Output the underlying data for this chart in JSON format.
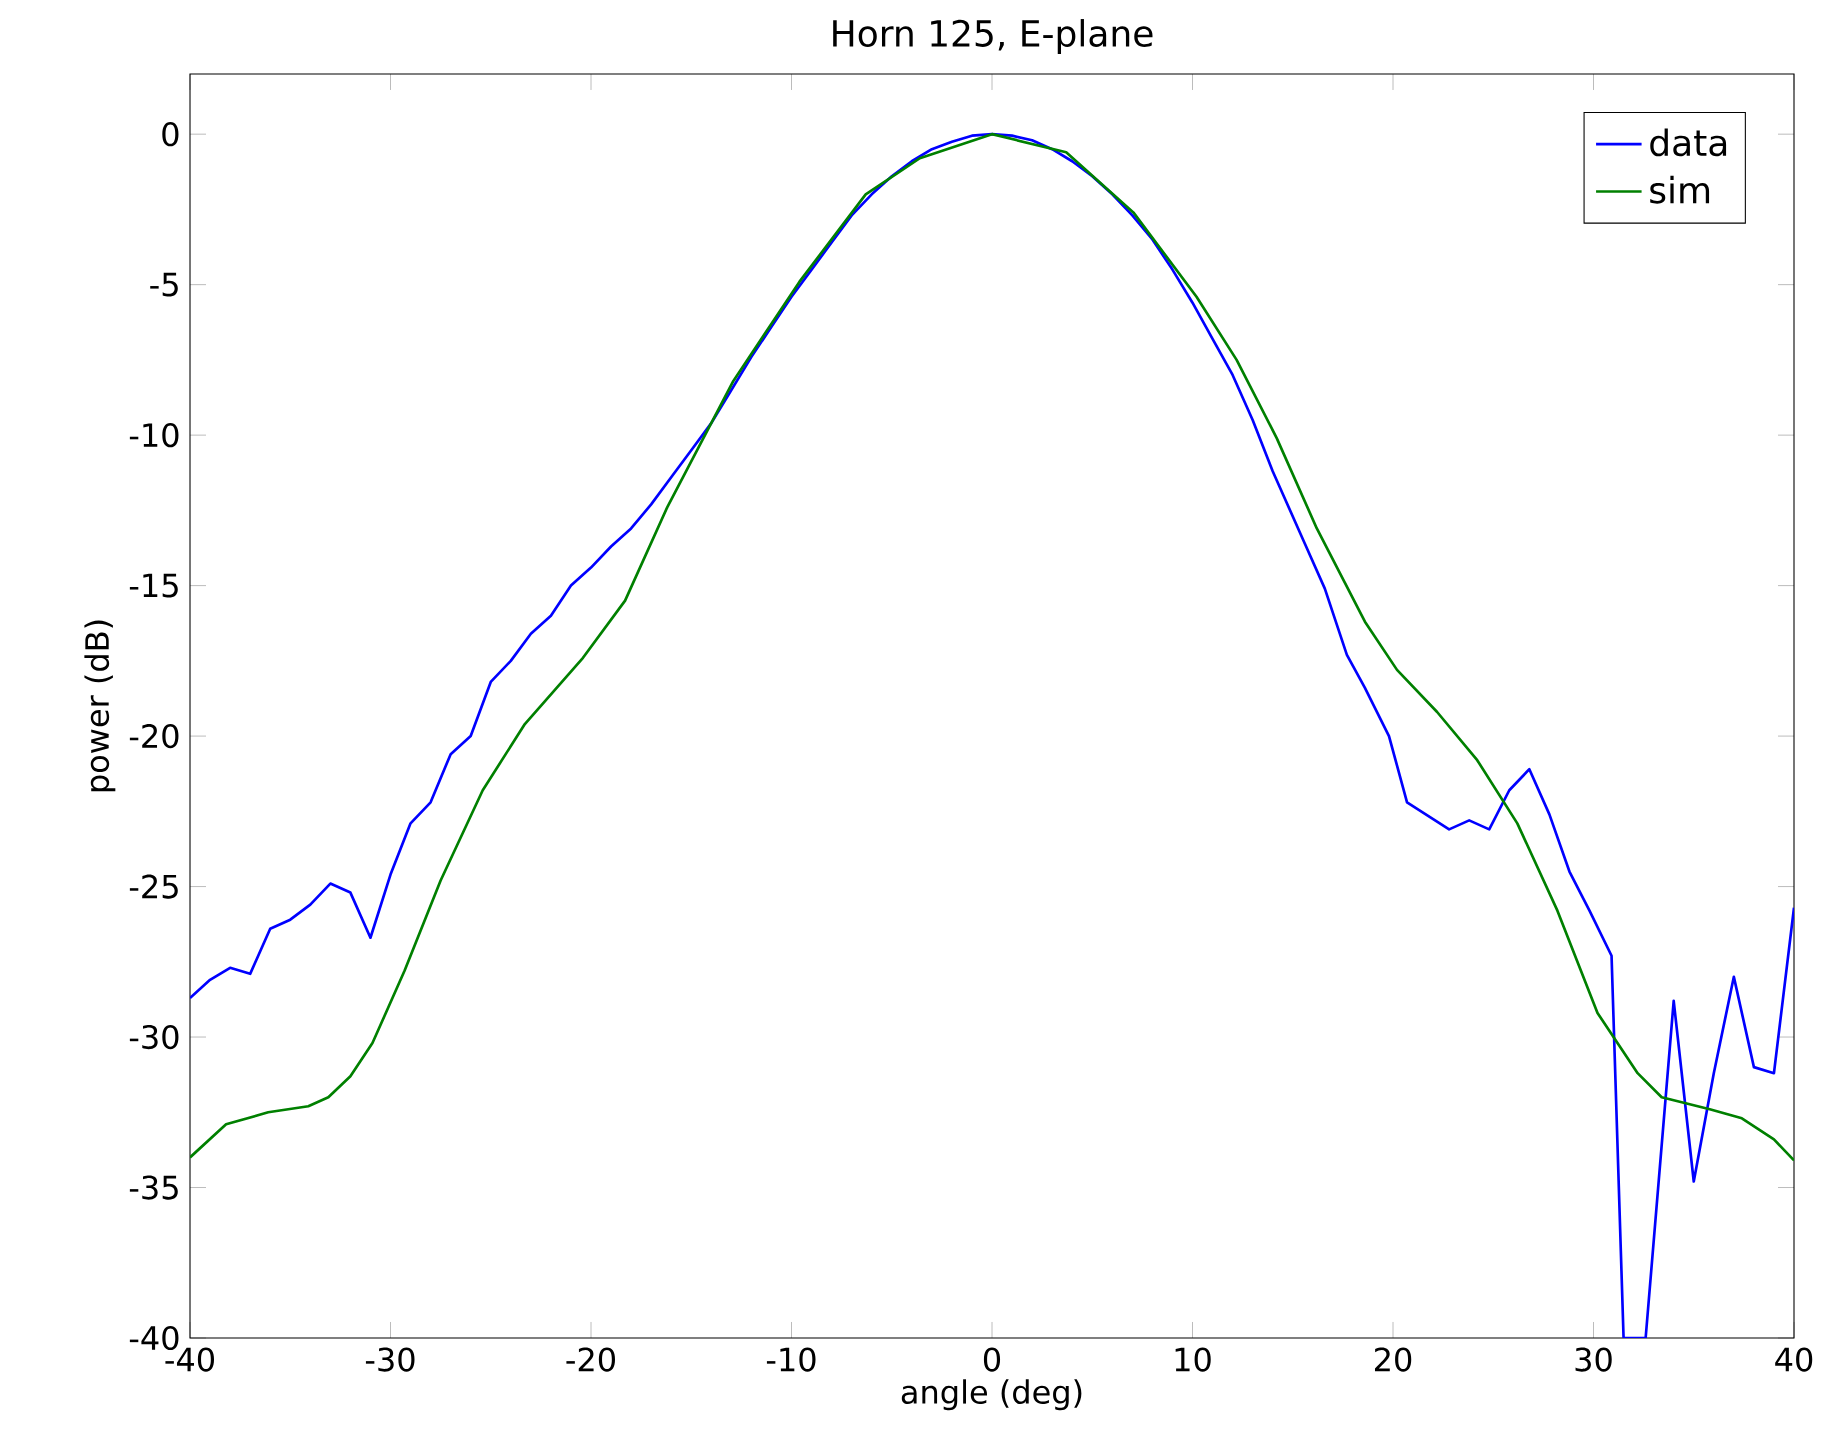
{
  "chart_data": {
    "type": "line",
    "title": "Horn 125, E-plane",
    "xlabel": "angle (deg)",
    "ylabel": "power (dB)",
    "xlim": [
      -40,
      40
    ],
    "ylim": [
      -40,
      2
    ],
    "xticks": [
      -40,
      -30,
      -20,
      -10,
      0,
      10,
      20,
      30,
      40
    ],
    "yticks": [
      -40,
      -35,
      -30,
      -25,
      -20,
      -15,
      -10,
      -5,
      0
    ],
    "grid": false,
    "legend": "top right",
    "line_style": "solid",
    "marker": "none",
    "series": [
      {
        "name": "data",
        "color": "#0000ff",
        "x": [
          -40,
          -39,
          -38,
          -37,
          -36,
          -35,
          -34,
          -33,
          -32,
          -31,
          -30,
          -29,
          -28,
          -27,
          -26,
          -25,
          -24,
          -23,
          -22,
          -21,
          -20,
          -19,
          -18,
          -17,
          -16,
          -15,
          -14,
          -13,
          -12,
          -11,
          -10,
          -9,
          -8,
          -7,
          -6,
          -5,
          -4,
          -3,
          -2,
          -1,
          0,
          1,
          2,
          3,
          4,
          5,
          6,
          7,
          8,
          9,
          10,
          11,
          12,
          13,
          14,
          15.6,
          16.6,
          17.7,
          18.6,
          19.8,
          20.7,
          22.8,
          23.8,
          24.8,
          25.8,
          26.8,
          27.8,
          28.8,
          29.8,
          30.9,
          31.5,
          32.6,
          34.0,
          35.0,
          36.0,
          37.0,
          38.0,
          39.0,
          40
        ],
        "values": [
          -28.7,
          -28.1,
          -27.7,
          -27.9,
          -26.4,
          -26.1,
          -25.6,
          -24.9,
          -25.2,
          -26.7,
          -24.6,
          -22.9,
          -22.2,
          -20.6,
          -20.0,
          -18.2,
          -17.5,
          -16.6,
          -16.0,
          -15.0,
          -14.4,
          -13.7,
          -13.1,
          -12.3,
          -11.4,
          -10.5,
          -9.6,
          -8.5,
          -7.4,
          -6.4,
          -5.4,
          -4.5,
          -3.6,
          -2.7,
          -2.0,
          -1.4,
          -0.9,
          -0.5,
          -0.25,
          -0.05,
          0,
          -0.05,
          -0.2,
          -0.5,
          -0.9,
          -1.4,
          -2.0,
          -2.7,
          -3.5,
          -4.5,
          -5.6,
          -6.8,
          -8.0,
          -9.5,
          -11.2,
          -13.6,
          -15.1,
          -17.3,
          -18.4,
          -20.0,
          -22.2,
          -23.1,
          -22.8,
          -23.1,
          -21.8,
          -21.1,
          -22.6,
          -24.5,
          -25.8,
          -27.3,
          -40,
          -40,
          -28.8,
          -34.8,
          -31.2,
          -28.0,
          -31.0,
          -31.2,
          -25.7
        ]
      },
      {
        "name": "sim",
        "color": "#008000",
        "x": [
          -40,
          -38.2,
          -36.1,
          -34.1,
          -33.1,
          -32,
          -30.9,
          -29.3,
          -27.5,
          -25.4,
          -23.3,
          -20.4,
          -18.3,
          -16.2,
          -12.9,
          -9.6,
          -6.3,
          -3.6,
          0,
          3.7,
          7.05,
          10.2,
          12.2,
          14.2,
          16.2,
          18.6,
          20.2,
          22.2,
          24.2,
          26.2,
          28.2,
          30.2,
          32.2,
          33.4,
          35.8,
          37.4,
          39.0,
          40
        ],
        "values": [
          -34.0,
          -32.9,
          -32.5,
          -32.3,
          -32.0,
          -31.3,
          -30.2,
          -27.8,
          -24.8,
          -21.8,
          -19.6,
          -17.4,
          -15.5,
          -12.4,
          -8.2,
          -4.9,
          -2.0,
          -0.8,
          0,
          -0.6,
          -2.6,
          -5.4,
          -7.5,
          -10.1,
          -13.1,
          -16.2,
          -17.8,
          -19.2,
          -20.8,
          -22.9,
          -25.8,
          -29.2,
          -31.2,
          -32.0,
          -32.4,
          -32.7,
          -33.4,
          -34.1
        ]
      }
    ]
  }
}
